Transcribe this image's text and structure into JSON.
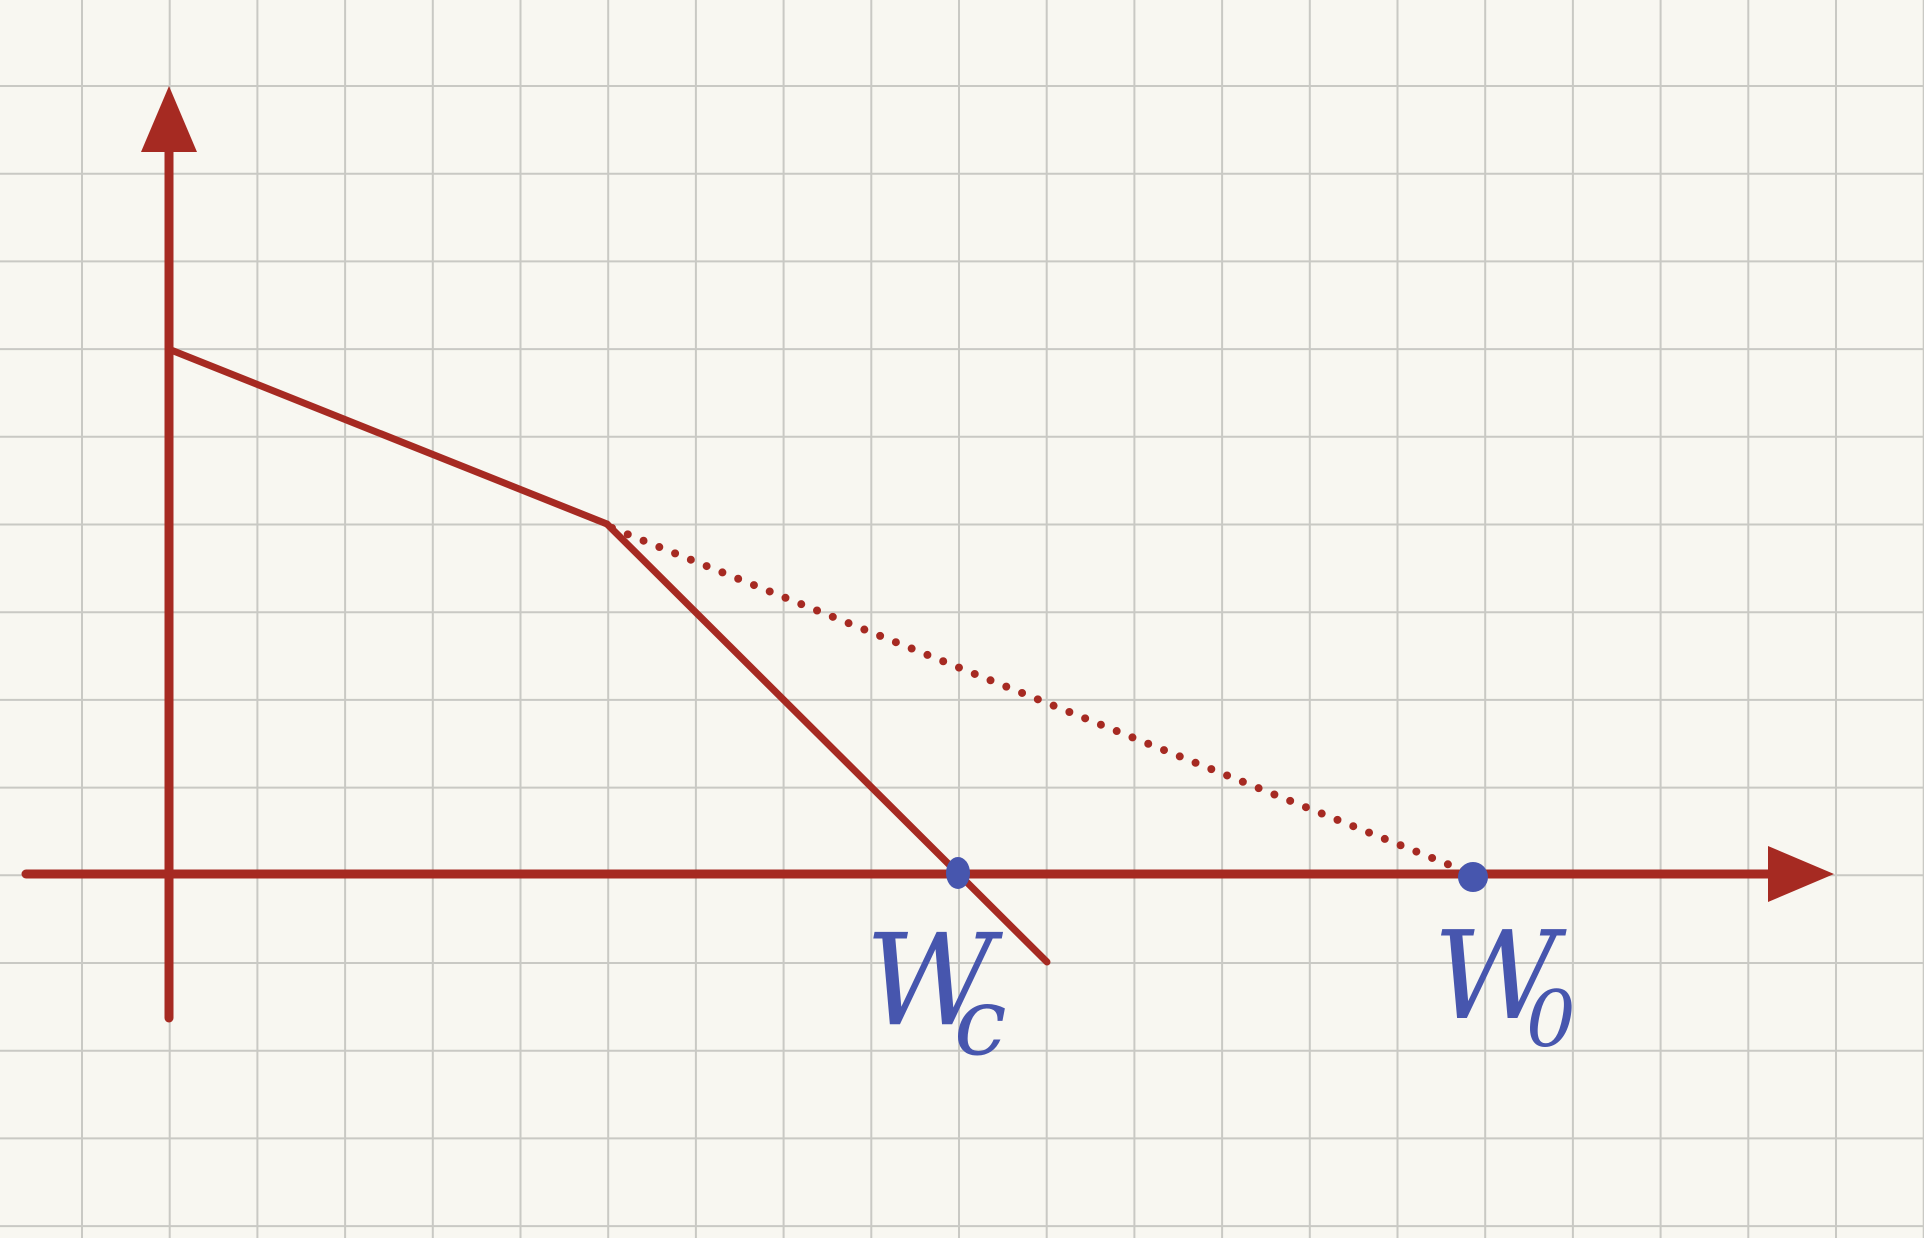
{
  "labels": {
    "omega_c": {
      "main": "W",
      "sub": "c"
    },
    "omega_0": {
      "main": "W",
      "sub": "0"
    }
  },
  "colors": {
    "paper": "#f8f7f1",
    "grid": "#c9c9c4",
    "axes_and_curve": "#a62a22",
    "points_and_labels": "#4756ae"
  }
}
